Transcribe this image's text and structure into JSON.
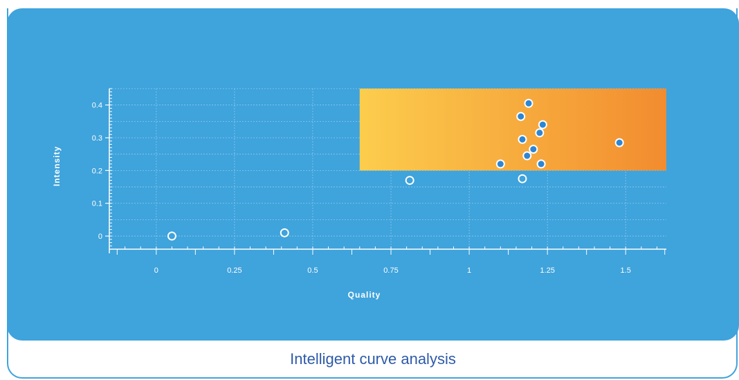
{
  "caption": "Intelligent curve analysis",
  "chart_data": {
    "type": "scatter",
    "title": "",
    "xlabel": "Quality",
    "ylabel": "Intensity",
    "xlim": [
      -0.15,
      1.63
    ],
    "ylim": [
      -0.04,
      0.45
    ],
    "x_ticks": [
      0,
      0.25,
      0.5,
      0.75,
      1,
      1.25,
      1.5
    ],
    "x_tick_labels": [
      "0",
      "0.25",
      "0.5",
      "0.75",
      "1",
      "1.25",
      "1.5"
    ],
    "y_ticks": [
      0,
      0.1,
      0.2,
      0.3,
      0.4
    ],
    "y_tick_labels": [
      "0",
      "0.1",
      "0.2",
      "0.3",
      "0.4"
    ],
    "grid": true,
    "highlight_region": {
      "x": [
        0.65,
        1.63
      ],
      "y": [
        0.2,
        0.45
      ],
      "colors": [
        "#fccd4d",
        "#f28c2f"
      ]
    },
    "points_outside": [
      {
        "x": 0.05,
        "y": 0.0
      },
      {
        "x": 0.41,
        "y": 0.01
      },
      {
        "x": 0.81,
        "y": 0.17
      },
      {
        "x": 1.17,
        "y": 0.175
      }
    ],
    "points_inside": [
      {
        "x": 1.19,
        "y": 0.405
      },
      {
        "x": 1.165,
        "y": 0.365
      },
      {
        "x": 1.235,
        "y": 0.34
      },
      {
        "x": 1.225,
        "y": 0.315
      },
      {
        "x": 1.17,
        "y": 0.295
      },
      {
        "x": 1.48,
        "y": 0.285
      },
      {
        "x": 1.205,
        "y": 0.265
      },
      {
        "x": 1.185,
        "y": 0.245
      },
      {
        "x": 1.1,
        "y": 0.22
      },
      {
        "x": 1.23,
        "y": 0.22
      }
    ],
    "colors": {
      "panel": "#3fa3dc",
      "point_fill_inside": "#2d86d3",
      "point_fill_outside": "#3fa3dc",
      "point_stroke": "#ffffff",
      "grid": "#8ccbef"
    }
  }
}
